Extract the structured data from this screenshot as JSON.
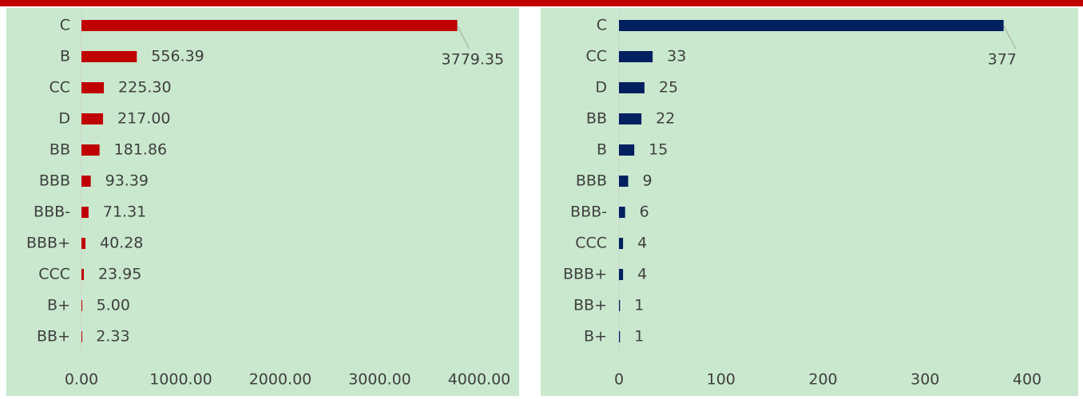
{
  "chart_data": [
    {
      "type": "bar",
      "orientation": "horizontal",
      "color": "#c00000",
      "categories": [
        "C",
        "B",
        "CC",
        "D",
        "BB",
        "BBB",
        "BBB-",
        "BBB+",
        "CCC",
        "B+",
        "BB+"
      ],
      "values": [
        3779.35,
        556.39,
        225.3,
        217.0,
        181.86,
        93.39,
        71.31,
        40.28,
        23.95,
        5.0,
        2.33
      ],
      "value_labels": [
        "3779.35",
        "556.39",
        "225.30",
        "217.00",
        "181.86",
        "93.39",
        "71.31",
        "40.28",
        "23.95",
        "5.00",
        "2.33"
      ],
      "xlim": [
        0,
        4000
      ],
      "xticks": [
        {
          "value": 0,
          "label": "0.00"
        },
        {
          "value": 1000,
          "label": "1000.00"
        },
        {
          "value": 2000,
          "label": "2000.00"
        },
        {
          "value": 3000,
          "label": "3000.00"
        },
        {
          "value": 4000,
          "label": "4000.00"
        }
      ]
    },
    {
      "type": "bar",
      "orientation": "horizontal",
      "color": "#002060",
      "categories": [
        "C",
        "CC",
        "D",
        "BB",
        "B",
        "BBB",
        "BBB-",
        "CCC",
        "BBB+",
        "BB+",
        "B+"
      ],
      "values": [
        377,
        33,
        25,
        22,
        15,
        9,
        6,
        4,
        4,
        1,
        1
      ],
      "xlim": [
        0,
        400
      ],
      "xticks": [
        0,
        100,
        200,
        300,
        400
      ]
    }
  ]
}
